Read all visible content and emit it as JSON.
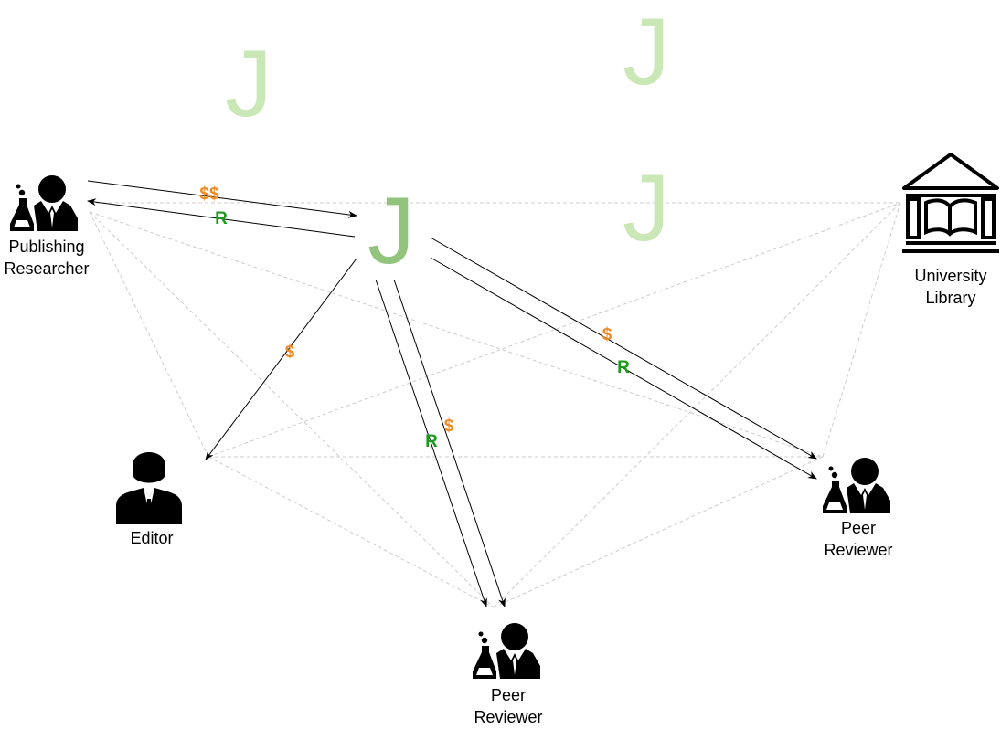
{
  "colors": {
    "journal_main": "#93c47d",
    "journal_faded": "#c9e8b5",
    "money": "#f08a24",
    "review": "#1f9a1f",
    "mesh_line": "#cccccc",
    "arrow_line": "#000000",
    "icon_fill": "#000000"
  },
  "icons": {
    "researcher": "scientist-icon",
    "editor": "businessman-icon",
    "library": "library-building-icon",
    "journal": "journal-j-icon"
  },
  "journals": {
    "main": "J",
    "faded_1": "J",
    "faded_2": "J",
    "faded_3": "J"
  },
  "nodes": {
    "publishing_researcher": [
      "Publishing",
      "Researcher"
    ],
    "editor": [
      "Editor"
    ],
    "peer_reviewer_bottom": [
      "Peer",
      "Reviewer"
    ],
    "peer_reviewer_right": [
      "Peer",
      "Reviewer"
    ],
    "university_library": [
      "University",
      "Library"
    ]
  },
  "flows": {
    "researcher_to_journal": "$$",
    "journal_to_researcher": "R",
    "journal_to_editor": "$",
    "journal_to_bottom_reviewer_review": "R",
    "journal_to_bottom_reviewer_money": "$",
    "journal_to_right_reviewer_money": "$",
    "journal_to_right_reviewer_review": "R"
  }
}
